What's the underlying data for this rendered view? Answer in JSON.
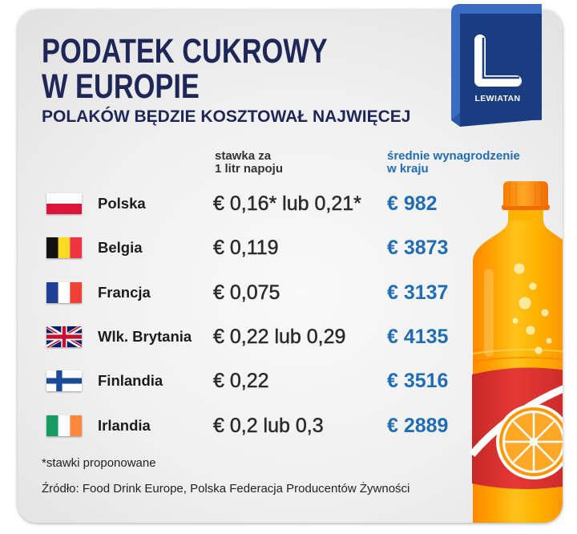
{
  "header": {
    "title_line1": "PODATEK CUKROWY",
    "title_line2": "W EUROPIE",
    "subtitle": "POLAKÓW BĘDZIE KOSZTOWAŁ NAJWIĘCEJ"
  },
  "logo": {
    "text": "LEWIATAN",
    "icon": "lewiatan-l-logo-icon"
  },
  "table": {
    "rate_header": [
      "stawka za",
      "1 litr napoju"
    ],
    "salary_header": [
      "średnie wynagrodzenie",
      "w kraju"
    ],
    "rows": [
      {
        "flag_icon": "poland-flag-icon",
        "country": "Polska",
        "rate": "€ 0,16* lub 0,21*",
        "salary": "€ 982"
      },
      {
        "flag_icon": "belgium-flag-icon",
        "country": "Belgia",
        "rate": "€ 0,119",
        "salary": "€ 3873"
      },
      {
        "flag_icon": "france-flag-icon",
        "country": "Francja",
        "rate": "€ 0,075",
        "salary": "€ 3137"
      },
      {
        "flag_icon": "united-kingdom-flag-icon",
        "country": "Wlk. Brytania",
        "rate": "€ 0,22 lub 0,29",
        "salary": "€ 4135"
      },
      {
        "flag_icon": "finland-flag-icon",
        "country": "Finlandia",
        "rate": "€ 0,22",
        "salary": "€ 3516"
      },
      {
        "flag_icon": "ireland-flag-icon",
        "country": "Irlandia",
        "rate": "€ 0,2 lub 0,3",
        "salary": "€ 2889"
      }
    ]
  },
  "notes": {
    "footnote": "*stawki proponowane",
    "source": "Źródło: Food Drink Europe, Polska Federacja Producentów Żywności"
  },
  "illustration": {
    "icon": "orange-soda-bottle-icon"
  },
  "colors": {
    "title": "#1f2759",
    "salary": "#1f6db5",
    "rate_text": "#2b2b2b",
    "country_text": "#1c1c1c",
    "logo_navy": "#1a3c80",
    "logo_fold": "#3b6cc4",
    "label_red": "#e53935"
  }
}
